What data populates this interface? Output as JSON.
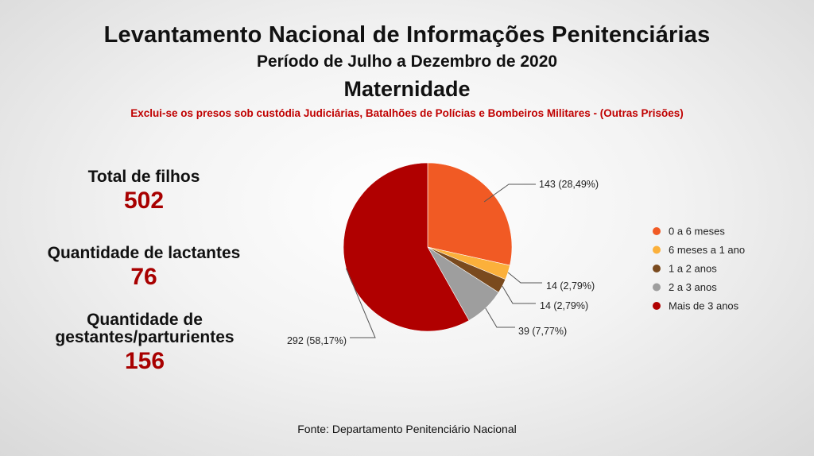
{
  "header": {
    "title": "Levantamento Nacional de Informações Penitenciárias",
    "subtitle": "Período de Julho a Dezembro de 2020",
    "section": "Maternidade",
    "note": "Exclui-se os presos sob custódia Judiciárias, Batalhões de Polícias e Bombeiros Militares - (Outras Prisões)"
  },
  "stats": [
    {
      "label": "Total de filhos",
      "value": "502"
    },
    {
      "label": "Quantidade de lactantes",
      "value": "76"
    },
    {
      "label": "Quantidade de gestantes/parturientes",
      "value": "156"
    }
  ],
  "chart_data": {
    "type": "pie",
    "categories": [
      "0 a 6 meses",
      "6 meses a 1 ano",
      "1 a 2 anos",
      "2 a 3 anos",
      "Mais de 3 anos"
    ],
    "values": [
      143,
      14,
      14,
      39,
      292
    ],
    "percentages": [
      28.49,
      2.79,
      2.79,
      7.77,
      58.17
    ],
    "data_labels": [
      "143 (28,49%)",
      "14 (2,79%)",
      "14 (2,79%)",
      "39 (7,77%)",
      "292 (58,17%)"
    ],
    "colors": [
      "#f15a24",
      "#fbb03b",
      "#7a4a1e",
      "#9e9e9e",
      "#b00000"
    ],
    "legend_position": "right"
  },
  "footer": {
    "source": "Fonte: Departamento Penitenciário Nacional"
  }
}
